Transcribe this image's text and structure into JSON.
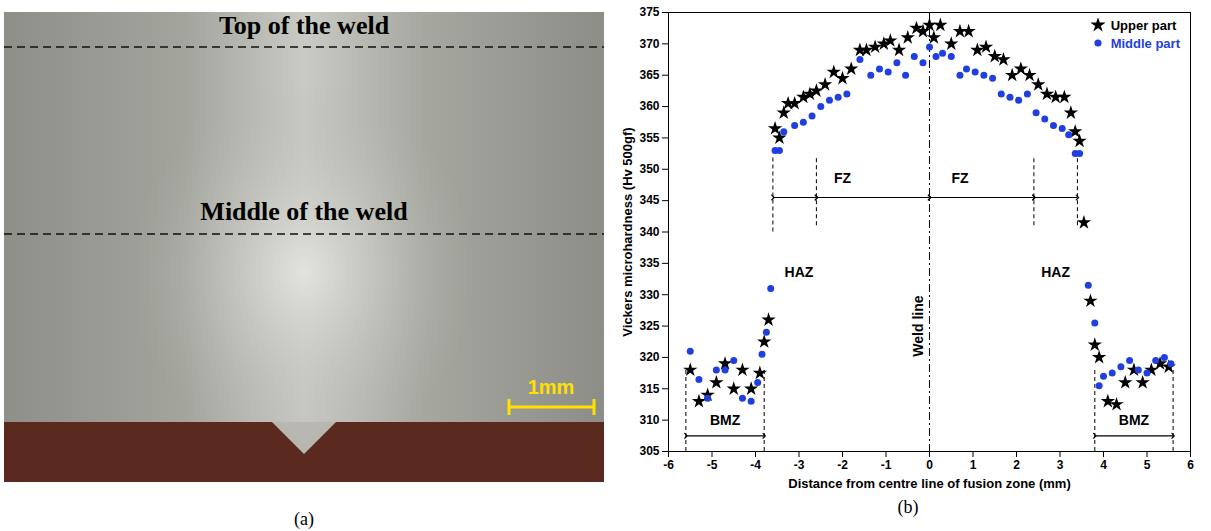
{
  "image_panel": {
    "caption": "(a)",
    "labels": [
      "Top of the weld",
      "Middle of the weld"
    ],
    "scale_bar": "1mm"
  },
  "chart_data": {
    "type": "scatter",
    "caption": "(b)",
    "xlabel": "Distance from centre line of fusion zone (mm)",
    "ylabel": "Vickers microhardness (Hv 500gf)",
    "xlim": [
      -6,
      6
    ],
    "xticks": [
      -6,
      -5,
      -4,
      -3,
      -2,
      -1,
      0,
      1,
      2,
      3,
      4,
      5,
      6
    ],
    "ylim": [
      305,
      375
    ],
    "yticks": [
      305,
      310,
      315,
      320,
      325,
      330,
      335,
      340,
      345,
      350,
      355,
      360,
      365,
      370,
      375
    ],
    "grid": false,
    "legend": "top-right",
    "series": [
      {
        "name": "Upper part",
        "color": "#000000",
        "marker": "star",
        "x": [
          -5.5,
          -5.3,
          -5.1,
          -4.9,
          -4.7,
          -4.5,
          -4.3,
          -4.1,
          -3.9,
          -3.8,
          -3.7,
          -3.55,
          -3.45,
          -3.35,
          -3.25,
          -3.1,
          -2.9,
          -2.75,
          -2.6,
          -2.4,
          -2.2,
          -2.0,
          -1.8,
          -1.6,
          -1.45,
          -1.25,
          -1.05,
          -0.9,
          -0.7,
          -0.5,
          -0.3,
          -0.15,
          0,
          0.1,
          0.25,
          0.5,
          0.7,
          0.9,
          1.1,
          1.3,
          1.5,
          1.7,
          1.9,
          2.1,
          2.3,
          2.5,
          2.7,
          2.9,
          3.1,
          3.25,
          3.35,
          3.45,
          3.55,
          3.7,
          3.8,
          3.9,
          4.1,
          4.3,
          4.5,
          4.7,
          4.9,
          5.1,
          5.3,
          5.5
        ],
        "values": [
          318,
          313,
          314,
          316,
          319,
          315,
          318,
          315,
          317.5,
          322.5,
          326,
          356.5,
          355,
          359,
          360.5,
          360.5,
          361.5,
          362,
          362.5,
          363.5,
          365.5,
          364.5,
          366,
          369,
          369,
          369.5,
          370,
          370.5,
          369,
          371,
          372.5,
          372,
          373,
          371,
          373,
          370,
          372,
          372,
          369,
          369.5,
          368,
          367.5,
          365,
          366,
          365,
          363.5,
          362,
          361.5,
          361.5,
          359,
          356,
          354.5,
          341.5,
          329,
          322,
          320,
          313,
          312.5,
          316,
          318,
          316,
          318,
          319,
          318.5
        ]
      },
      {
        "name": "Middle part",
        "color": "#1f3fe0",
        "marker": "circle",
        "x": [
          -5.5,
          -5.3,
          -5.1,
          -4.9,
          -4.7,
          -4.5,
          -4.3,
          -4.1,
          -3.95,
          -3.85,
          -3.75,
          -3.65,
          -3.55,
          -3.45,
          -3.35,
          -3.1,
          -2.9,
          -2.7,
          -2.5,
          -2.3,
          -2.1,
          -1.9,
          -1.6,
          -1.35,
          -1.15,
          -0.95,
          -0.75,
          -0.55,
          -0.35,
          -0.15,
          0,
          0.15,
          0.3,
          0.5,
          0.7,
          0.85,
          1.05,
          1.25,
          1.45,
          1.65,
          1.85,
          2.05,
          2.25,
          2.45,
          2.65,
          2.85,
          3.05,
          3.2,
          3.35,
          3.45,
          3.65,
          3.8,
          3.9,
          4.0,
          4.2,
          4.4,
          4.6,
          4.8,
          5.0,
          5.2,
          5.4,
          5.55
        ],
        "values": [
          321,
          316.5,
          313.5,
          318,
          318,
          319.5,
          313.5,
          313,
          316,
          320.5,
          324,
          331,
          353,
          353,
          356,
          357,
          357.5,
          358.5,
          360,
          361,
          361.5,
          362,
          367.5,
          365,
          366,
          365.5,
          367,
          365,
          368,
          367,
          369.5,
          368,
          368.5,
          368,
          365,
          366,
          365.5,
          365,
          364.5,
          362,
          361.5,
          361,
          362,
          359,
          358,
          357,
          356.5,
          355.5,
          352.5,
          352.5,
          331.5,
          325.5,
          315.5,
          317,
          317.5,
          318.5,
          319.5,
          318,
          317.5,
          319.5,
          320,
          319
        ]
      }
    ],
    "weld_line": {
      "label": "Weld line",
      "x": 0,
      "label_x": -0.25,
      "label_y": 325
    },
    "boundaries": [
      {
        "x": -5.6,
        "y1": 305,
        "y2": 318
      },
      {
        "x": -3.8,
        "y1": 305,
        "y2": 318
      },
      {
        "x": 3.8,
        "y1": 305,
        "y2": 318
      },
      {
        "x": 5.6,
        "y1": 305,
        "y2": 318
      },
      {
        "x": -3.6,
        "y1": 340,
        "y2": 352
      },
      {
        "x": -2.6,
        "y1": 341,
        "y2": 352
      },
      {
        "x": 2.4,
        "y1": 341,
        "y2": 352
      },
      {
        "x": 3.4,
        "y1": 341,
        "y2": 352
      }
    ],
    "arrows": [
      {
        "from": -3.6,
        "to": -2.6,
        "y": 345.5
      },
      {
        "from": -2.6,
        "to": 0,
        "y": 345.5
      },
      {
        "from": 0,
        "to": 2.4,
        "y": 345.5
      },
      {
        "from": 2.4,
        "to": 3.4,
        "y": 345.5
      },
      {
        "from": -5.6,
        "to": -3.8,
        "y": 307.5
      },
      {
        "from": 3.8,
        "to": 5.6,
        "y": 307.5
      }
    ],
    "annotations": [
      {
        "text": "FZ",
        "x": -2.0,
        "y": 348.5
      },
      {
        "text": "FZ",
        "x": 0.7,
        "y": 348.5
      },
      {
        "text": "HAZ",
        "x": -3.0,
        "y": 333.5
      },
      {
        "text": "HAZ",
        "x": 2.9,
        "y": 333.5
      },
      {
        "text": "BMZ",
        "x": -4.7,
        "y": 310
      },
      {
        "text": "BMZ",
        "x": 4.7,
        "y": 310
      }
    ]
  }
}
